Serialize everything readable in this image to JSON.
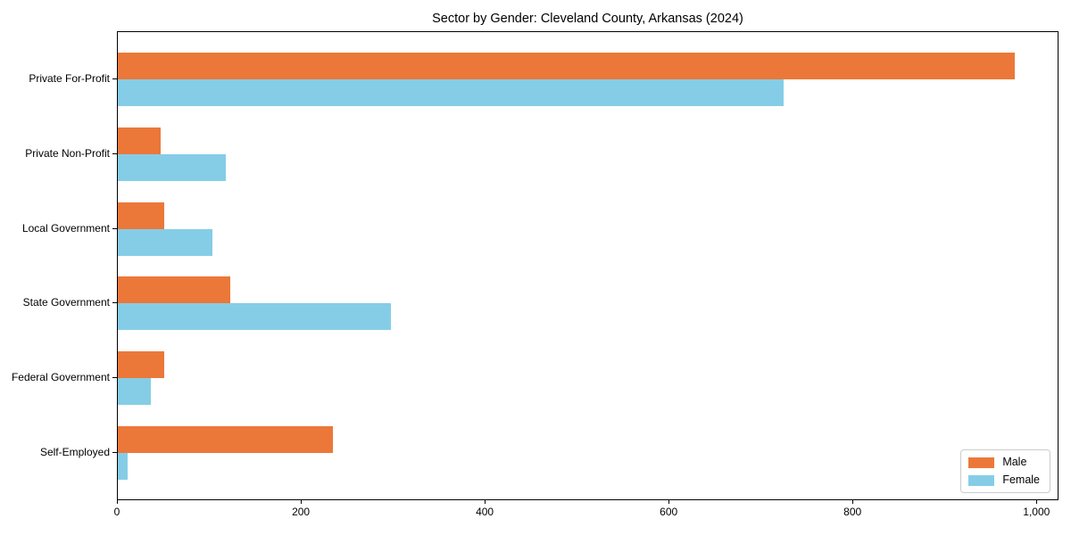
{
  "chart_data": {
    "type": "bar",
    "orientation": "horizontal",
    "title": "Sector by Gender: Cleveland County, Arkansas (2024)",
    "categories": [
      "Private For-Profit",
      "Private Non-Profit",
      "Local Government",
      "State Government",
      "Federal Government",
      "Self-Employed"
    ],
    "series": [
      {
        "name": "Male",
        "color": "#EB7839",
        "values": [
          975,
          47,
          50,
          122,
          50,
          234
        ]
      },
      {
        "name": "Female",
        "color": "#85CDE6",
        "values": [
          724,
          117,
          103,
          297,
          36,
          11
        ]
      }
    ],
    "xlabel": "",
    "ylabel": "",
    "xlim": [
      0,
      1024
    ],
    "x_ticks": [
      0,
      200,
      400,
      600,
      800,
      1000
    ],
    "x_tick_labels": [
      "0",
      "200",
      "400",
      "600",
      "800",
      "1,000"
    ],
    "grid": false,
    "legend": {
      "position": "lower right",
      "entries": [
        "Male",
        "Female"
      ]
    }
  }
}
